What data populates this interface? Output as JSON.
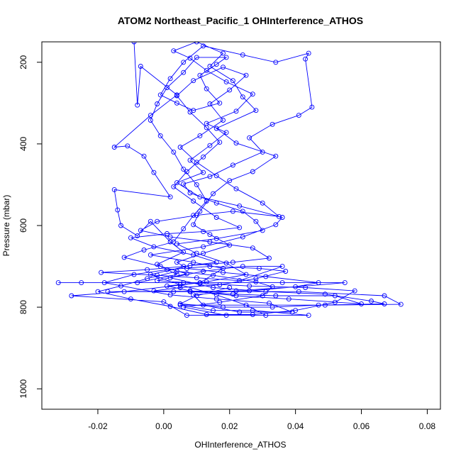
{
  "chart_data": {
    "type": "scatter",
    "title": "ATOM2 Northeast_Pacific_1 OHInterference_ATHOS",
    "xlabel": "OHInterference_ATHOS",
    "ylabel": "Pressure (mbar)",
    "xlim": [
      -0.037,
      0.084
    ],
    "ylim": [
      1050,
      150
    ],
    "y_reversed": true,
    "grid": false,
    "legend": "none",
    "x_ticks": [
      {
        "value": -0.02,
        "label": "-0.02"
      },
      {
        "value": 0.0,
        "label": "0.00"
      },
      {
        "value": 0.02,
        "label": "0.02"
      },
      {
        "value": 0.04,
        "label": "0.04"
      },
      {
        "value": 0.06,
        "label": "0.06"
      },
      {
        "value": 0.08,
        "label": "0.08"
      }
    ],
    "y_ticks": [
      {
        "value": 200,
        "label": "200"
      },
      {
        "value": 400,
        "label": "400"
      },
      {
        "value": 600,
        "label": "600"
      },
      {
        "value": 800,
        "label": "800"
      },
      {
        "value": 1000,
        "label": "1000"
      }
    ],
    "series": [
      {
        "color": "#0000ff",
        "marker": "open-circle",
        "line": true,
        "points": [
          [
            -0.009,
            150
          ],
          [
            -0.008,
            305
          ],
          [
            -0.007,
            210
          ],
          [
            0.004,
            280
          ],
          [
            -0.004,
            330
          ],
          [
            -0.015,
            408
          ],
          [
            -0.011,
            405
          ],
          [
            -0.006,
            430
          ],
          [
            -0.003,
            470
          ],
          [
            0.002,
            530
          ],
          [
            -0.015,
            512
          ],
          [
            -0.014,
            562
          ],
          [
            -0.013,
            600
          ],
          [
            -0.008,
            625
          ],
          [
            -0.004,
            590
          ],
          [
            0.002,
            640
          ],
          [
            0.006,
            665
          ],
          [
            -0.002,
            695
          ],
          [
            0.004,
            720
          ],
          [
            -0.008,
            740
          ],
          [
            -0.025,
            740
          ],
          [
            -0.032,
            740
          ],
          [
            0.006,
            740
          ],
          [
            0.036,
            740
          ],
          [
            0.055,
            740
          ],
          [
            0.026,
            760
          ],
          [
            -0.017,
            762
          ],
          [
            0.003,
            762
          ],
          [
            0.041,
            762
          ],
          [
            0.067,
            772
          ],
          [
            0.072,
            793
          ],
          [
            0.049,
            795
          ],
          [
            0.005,
            795
          ],
          [
            0.015,
            808
          ],
          [
            0.027,
            808
          ],
          [
            0.044,
            820
          ],
          [
            0.007,
            820
          ],
          [
            0.0,
            787
          ],
          [
            -0.028,
            772
          ],
          [
            -0.012,
            762
          ],
          [
            0.011,
            740
          ],
          [
            0.018,
            705
          ],
          [
            0.009,
            690
          ],
          [
            -0.004,
            672
          ],
          [
            0.012,
            652
          ],
          [
            0.024,
            628
          ],
          [
            0.034,
            598
          ],
          [
            0.036,
            580
          ],
          [
            0.023,
            552
          ],
          [
            0.011,
            530
          ],
          [
            0.004,
            495
          ],
          [
            0.012,
            470
          ],
          [
            0.008,
            440
          ],
          [
            0.014,
            404
          ],
          [
            0.019,
            372
          ],
          [
            0.013,
            350
          ],
          [
            0.022,
            320
          ],
          [
            0.027,
            278
          ],
          [
            0.019,
            248
          ],
          [
            0.013,
            220
          ],
          [
            0.008,
            190
          ],
          [
            0.003,
            172
          ],
          [
            0.01,
            150
          ],
          [
            0.018,
            178
          ],
          [
            0.014,
            210
          ],
          [
            0.021,
            245
          ],
          [
            0.024,
            285
          ],
          [
            0.028,
            318
          ],
          [
            0.016,
            362
          ],
          [
            0.022,
            398
          ],
          [
            0.034,
            430
          ],
          [
            0.027,
            468
          ],
          [
            0.02,
            490
          ],
          [
            0.015,
            522
          ],
          [
            0.011,
            565
          ],
          [
            0.009,
            598
          ],
          [
            0.014,
            622
          ],
          [
            0.02,
            648
          ],
          [
            0.012,
            668
          ],
          [
            0.004,
            690
          ],
          [
            0.007,
            705
          ],
          [
            0.018,
            715
          ],
          [
            0.031,
            725
          ],
          [
            0.047,
            740
          ],
          [
            0.04,
            750
          ],
          [
            0.022,
            760
          ],
          [
            0.009,
            770
          ],
          [
            0.012,
            795
          ],
          [
            0.023,
            812
          ],
          [
            0.039,
            812
          ],
          [
            0.032,
            790
          ],
          [
            0.016,
            780
          ],
          [
            0.002,
            770
          ],
          [
            -0.018,
            740
          ],
          [
            -0.009,
            720
          ],
          [
            0.001,
            708
          ],
          [
            0.014,
            700
          ],
          [
            0.029,
            705
          ],
          [
            0.037,
            712
          ],
          [
            0.028,
            730
          ],
          [
            0.017,
            745
          ],
          [
            0.005,
            752
          ],
          [
            -0.003,
            760
          ],
          [
            0.008,
            762
          ],
          [
            0.021,
            768
          ],
          [
            0.034,
            772
          ],
          [
            0.052,
            772
          ],
          [
            0.06,
            792
          ],
          [
            0.038,
            780
          ],
          [
            0.022,
            772
          ],
          [
            0.008,
            760
          ],
          [
            0.001,
            748
          ],
          [
            0.013,
            738
          ],
          [
            0.025,
            720
          ],
          [
            0.019,
            692
          ],
          [
            0.01,
            668
          ],
          [
            0.004,
            645
          ],
          [
            0.016,
            632
          ],
          [
            0.03,
            612
          ],
          [
            0.028,
            590
          ],
          [
            0.024,
            565
          ],
          [
            0.016,
            545
          ],
          [
            0.008,
            520
          ],
          [
            0.006,
            498
          ],
          [
            0.014,
            480
          ],
          [
            0.021,
            452
          ],
          [
            0.03,
            420
          ],
          [
            0.026,
            385
          ],
          [
            0.033,
            352
          ],
          [
            0.041,
            330
          ],
          [
            0.045,
            310
          ],
          [
            0.043,
            192
          ],
          [
            0.044,
            178
          ],
          [
            0.034,
            200
          ],
          [
            0.024,
            182
          ],
          [
            0.012,
            160
          ],
          [
            0.006,
            200
          ],
          [
            0.002,
            240
          ],
          [
            -0.001,
            280
          ],
          [
            0.004,
            300
          ],
          [
            0.009,
            318
          ],
          [
            0.017,
            300
          ],
          [
            0.013,
            265
          ],
          [
            0.011,
            232
          ],
          [
            0.016,
            205
          ],
          [
            0.019,
            188
          ],
          [
            0.01,
            188
          ],
          [
            0.006,
            225
          ],
          [
            0.001,
            262
          ],
          [
            -0.002,
            302
          ],
          [
            -0.004,
            342
          ],
          [
            -0.001,
            380
          ],
          [
            0.003,
            420
          ],
          [
            0.006,
            462
          ],
          [
            0.01,
            500
          ],
          [
            0.013,
            540
          ],
          [
            0.009,
            575
          ],
          [
            0.006,
            608
          ],
          [
            0.003,
            640
          ],
          [
            -0.006,
            660
          ],
          [
            -0.012,
            678
          ],
          [
            -0.001,
            700
          ],
          [
            0.007,
            718
          ],
          [
            -0.002,
            735
          ],
          [
            0.011,
            742
          ],
          [
            0.026,
            748
          ],
          [
            0.043,
            752
          ],
          [
            0.058,
            760
          ],
          [
            0.052,
            788
          ],
          [
            0.04,
            808
          ],
          [
            0.027,
            818
          ],
          [
            0.013,
            818
          ],
          [
            0.002,
            798
          ],
          [
            -0.01,
            780
          ],
          [
            -0.02,
            762
          ],
          [
            -0.013,
            748
          ],
          [
            -0.005,
            730
          ],
          [
            0.004,
            712
          ],
          [
            0.015,
            722
          ],
          [
            0.028,
            738
          ],
          [
            0.033,
            750
          ],
          [
            0.03,
            772
          ],
          [
            0.017,
            788
          ],
          [
            0.006,
            800
          ],
          [
            0.019,
            820
          ],
          [
            0.031,
            820
          ],
          [
            0.025,
            795
          ],
          [
            0.016,
            770
          ],
          [
            0.005,
            745
          ],
          [
            -0.004,
            720
          ],
          [
            0.008,
            698
          ],
          [
            0.021,
            690
          ],
          [
            0.032,
            680
          ],
          [
            0.027,
            655
          ],
          [
            0.014,
            640
          ],
          [
            0.002,
            628
          ],
          [
            -0.007,
            612
          ],
          [
            -0.002,
            590
          ],
          [
            0.01,
            575
          ],
          [
            0.021,
            565
          ],
          [
            0.035,
            578
          ],
          [
            0.03,
            545
          ],
          [
            0.022,
            510
          ],
          [
            0.016,
            478
          ],
          [
            0.01,
            445
          ],
          [
            0.005,
            408
          ],
          [
            0.011,
            380
          ],
          [
            0.018,
            342
          ],
          [
            0.014,
            302
          ],
          [
            0.02,
            268
          ],
          [
            0.025,
            232
          ],
          [
            0.018,
            212
          ],
          [
            0.009,
            245
          ],
          [
            0.004,
            282
          ],
          [
            0.008,
            322
          ],
          [
            0.013,
            360
          ],
          [
            0.017,
            396
          ],
          [
            0.012,
            432
          ],
          [
            0.007,
            468
          ],
          [
            0.003,
            505
          ],
          [
            0.009,
            540
          ],
          [
            0.016,
            580
          ],
          [
            0.023,
            605
          ],
          [
            0.012,
            615
          ],
          [
            0.001,
            620
          ],
          [
            -0.01,
            630
          ],
          [
            -0.003,
            652
          ],
          [
            0.009,
            672
          ],
          [
            0.016,
            690
          ],
          [
            0.006,
            700
          ],
          [
            -0.005,
            708
          ],
          [
            -0.019,
            715
          ],
          [
            -0.002,
            722
          ],
          [
            0.01,
            728
          ],
          [
            0.023,
            735
          ],
          [
            0.036,
            700
          ],
          [
            0.024,
            700
          ],
          [
            0.012,
            712
          ],
          [
            0.002,
            728
          ],
          [
            0.015,
            752
          ],
          [
            0.031,
            762
          ],
          [
            0.049,
            768
          ],
          [
            0.063,
            785
          ],
          [
            0.067,
            792
          ],
          [
            0.047,
            795
          ],
          [
            0.033,
            800
          ],
          [
            0.018,
            800
          ],
          [
            0.005,
            792
          ],
          [
            0.01,
            772
          ],
          [
            0.02,
            752
          ]
        ]
      }
    ]
  }
}
